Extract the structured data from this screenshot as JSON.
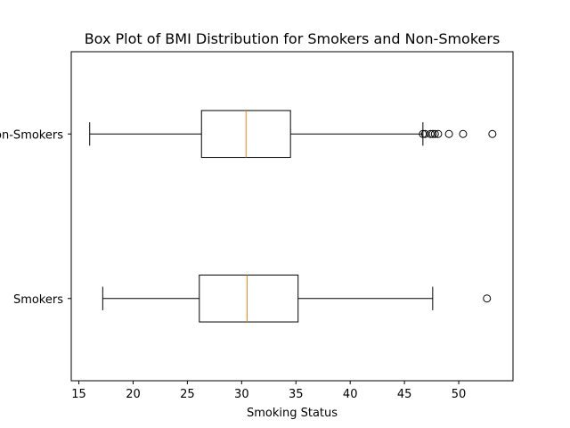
{
  "chart_data": {
    "type": "boxplot",
    "orientation": "horizontal",
    "title": "Box Plot of BMI Distribution for Smokers and Non-Smokers",
    "xlabel": "Smoking Status",
    "ylabel": "",
    "xlim": [
      14.3,
      55.0
    ],
    "xticks": [
      15,
      20,
      25,
      30,
      35,
      40,
      45,
      50
    ],
    "grid": false,
    "colors": {
      "box": "#000000",
      "median": "#ff7f0e",
      "frame": "#000000"
    },
    "groups": [
      {
        "name": "Non-Smokers",
        "whisker_low": 16.0,
        "q1": 26.3,
        "median": 30.4,
        "q3": 34.5,
        "whisker_high": 46.7,
        "outliers": [
          46.7,
          46.9,
          47.4,
          47.6,
          47.8,
          48.1,
          49.1,
          50.4,
          53.1
        ]
      },
      {
        "name": "Smokers",
        "whisker_low": 17.2,
        "q1": 26.1,
        "median": 30.5,
        "q3": 35.2,
        "whisker_high": 47.6,
        "outliers": [
          52.6
        ]
      }
    ]
  }
}
